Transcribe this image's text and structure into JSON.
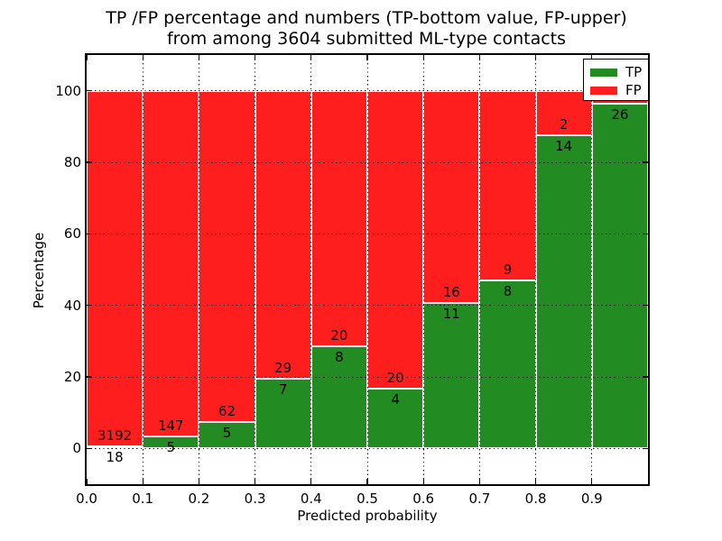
{
  "figure": {
    "title_line1": "TP /FP percentage and numbers (TP-bottom value, FP-upper)",
    "title_line2": "from among 3604 submitted ML-type contacts",
    "background": "#ffffff"
  },
  "chart_data": {
    "type": "bar",
    "variant": "stacked-percentage-histogram",
    "title": "TP /FP percentage and numbers (TP-bottom value, FP-upper)\nfrom among 3604 submitted ML-type contacts",
    "xlabel": "Predicted probability",
    "ylabel": "Percentage",
    "xlim": [
      0.0,
      1.0
    ],
    "ylim": [
      -10,
      110
    ],
    "xticks": [
      "0.0",
      "0.1",
      "0.2",
      "0.3",
      "0.4",
      "0.5",
      "0.6",
      "0.7",
      "0.8",
      "0.9"
    ],
    "yticks": [
      "0",
      "20",
      "40",
      "60",
      "80",
      "100"
    ],
    "grid": {
      "style": "dotted",
      "color": "#000000"
    },
    "colors": {
      "tp": "#228B22",
      "fp": "#FF1E1E"
    },
    "legend": {
      "position": "upper-right",
      "entries": [
        {
          "label": "TP",
          "color": "#228B22"
        },
        {
          "label": "FP",
          "color": "#FF1E1E"
        }
      ]
    },
    "bins": [
      {
        "x_start": 0.0,
        "x_end": 0.1,
        "tp": 18,
        "fp": 3192,
        "tp_pct": 0.56
      },
      {
        "x_start": 0.1,
        "x_end": 0.2,
        "tp": 5,
        "fp": 147,
        "tp_pct": 3.29
      },
      {
        "x_start": 0.2,
        "x_end": 0.3,
        "tp": 5,
        "fp": 62,
        "tp_pct": 7.46
      },
      {
        "x_start": 0.3,
        "x_end": 0.4,
        "tp": 7,
        "fp": 29,
        "tp_pct": 19.44
      },
      {
        "x_start": 0.4,
        "x_end": 0.5,
        "tp": 8,
        "fp": 20,
        "tp_pct": 28.57
      },
      {
        "x_start": 0.5,
        "x_end": 0.6,
        "tp": 4,
        "fp": 20,
        "tp_pct": 16.67
      },
      {
        "x_start": 0.6,
        "x_end": 0.7,
        "tp": 11,
        "fp": 16,
        "tp_pct": 40.74
      },
      {
        "x_start": 0.7,
        "x_end": 0.8,
        "tp": 8,
        "fp": 9,
        "tp_pct": 47.06
      },
      {
        "x_start": 0.8,
        "x_end": 0.9,
        "tp": 14,
        "fp": 2,
        "tp_pct": 87.5
      },
      {
        "x_start": 0.9,
        "x_end": 1.0,
        "tp": 26,
        "fp": null,
        "tp_pct": 96.3
      }
    ]
  }
}
